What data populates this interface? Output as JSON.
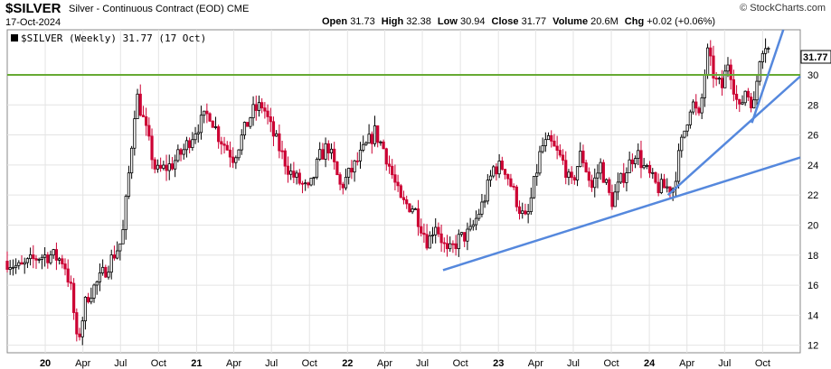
{
  "header": {
    "symbol": "$SILVER",
    "description": "Silver - Continuous Contract (EOD)",
    "exchange": "CME",
    "date": "17-Oct-2024",
    "brand": "© StockCharts.com",
    "open_label": "Open",
    "open": "31.73",
    "high_label": "High",
    "high": "32.38",
    "low_label": "Low",
    "low": "30.94",
    "close_label": "Close",
    "close": "31.77",
    "volume_label": "Volume",
    "volume": "20.6M",
    "chg_label": "Chg",
    "chg": "+0.02 (+0.06%)"
  },
  "legend": "$SILVER (Weekly) 31.77 (17 Oct)",
  "price_tag": "31.77",
  "colors": {
    "up": "#000000",
    "down": "#cc0033",
    "trend": "#5588dd",
    "resistance": "#66aa33",
    "grid": "#e4e4e4"
  },
  "chart_data": {
    "type": "candlestick",
    "interval": "weekly",
    "ylim": [
      11.5,
      33
    ],
    "yticks": [
      12,
      14,
      16,
      18,
      20,
      22,
      24,
      26,
      28,
      30
    ],
    "x_tick_labels": [
      "20",
      "Apr",
      "Jul",
      "Oct",
      "21",
      "Apr",
      "Jul",
      "Oct",
      "22",
      "Apr",
      "Jul",
      "Oct",
      "23",
      "Apr",
      "Jul",
      "Oct",
      "24",
      "Apr",
      "Jul",
      "Oct"
    ],
    "x_tick_dates": [
      "2020-01-01",
      "2020-04-01",
      "2020-07-01",
      "2020-10-01",
      "2021-01-01",
      "2021-04-01",
      "2021-07-01",
      "2021-10-01",
      "2022-01-01",
      "2022-04-01",
      "2022-07-01",
      "2022-10-01",
      "2023-01-01",
      "2023-04-01",
      "2023-07-01",
      "2023-10-01",
      "2024-01-01",
      "2024-04-01",
      "2024-07-01",
      "2024-10-01"
    ],
    "xlim": [
      "2019-10-01",
      "2024-12-31"
    ],
    "close_path": [
      [
        "2019-10-01",
        17.6
      ],
      [
        "2019-11-01",
        17.1
      ],
      [
        "2019-12-15",
        17.9
      ],
      [
        "2020-01-15",
        18.0
      ],
      [
        "2020-02-15",
        17.6
      ],
      [
        "2020-03-05",
        15.5
      ],
      [
        "2020-03-18",
        12.0
      ],
      [
        "2020-04-10",
        15.2
      ],
      [
        "2020-05-10",
        16.3
      ],
      [
        "2020-06-10",
        17.8
      ],
      [
        "2020-07-05",
        19.0
      ],
      [
        "2020-07-25",
        24.5
      ],
      [
        "2020-08-08",
        28.8
      ],
      [
        "2020-08-25",
        27.0
      ],
      [
        "2020-09-25",
        23.5
      ],
      [
        "2020-11-01",
        24.0
      ],
      [
        "2020-12-01",
        25.0
      ],
      [
        "2021-01-01",
        26.5
      ],
      [
        "2021-02-01",
        27.5
      ],
      [
        "2021-02-22",
        26.0
      ],
      [
        "2021-03-31",
        24.5
      ],
      [
        "2021-05-15",
        27.5
      ],
      [
        "2021-06-10",
        28.0
      ],
      [
        "2021-07-01",
        26.3
      ],
      [
        "2021-08-15",
        23.5
      ],
      [
        "2021-09-30",
        22.2
      ],
      [
        "2021-10-25",
        24.5
      ],
      [
        "2021-11-15",
        25.3
      ],
      [
        "2021-12-15",
        22.5
      ],
      [
        "2022-01-15",
        23.8
      ],
      [
        "2022-03-08",
        26.2
      ],
      [
        "2022-03-31",
        25.0
      ],
      [
        "2022-05-10",
        21.5
      ],
      [
        "2022-06-10",
        21.2
      ],
      [
        "2022-07-15",
        18.8
      ],
      [
        "2022-08-01",
        20.2
      ],
      [
        "2022-08-31",
        18.0
      ],
      [
        "2022-09-25",
        19.0
      ],
      [
        "2022-10-25",
        19.5
      ],
      [
        "2022-11-25",
        21.5
      ],
      [
        "2022-12-20",
        23.8
      ],
      [
        "2023-01-15",
        23.9
      ],
      [
        "2023-02-25",
        20.8
      ],
      [
        "2023-03-10",
        20.2
      ],
      [
        "2023-04-15",
        25.2
      ],
      [
        "2023-05-05",
        25.5
      ],
      [
        "2023-06-10",
        24.0
      ],
      [
        "2023-06-25",
        22.5
      ],
      [
        "2023-07-20",
        24.8
      ],
      [
        "2023-08-15",
        22.5
      ],
      [
        "2023-09-05",
        24.0
      ],
      [
        "2023-10-01",
        21.5
      ],
      [
        "2023-10-25",
        23.0
      ],
      [
        "2023-11-30",
        25.0
      ],
      [
        "2023-12-15",
        24.0
      ],
      [
        "2024-01-20",
        22.5
      ],
      [
        "2024-02-28",
        22.5
      ],
      [
        "2024-03-15",
        25.0
      ],
      [
        "2024-04-12",
        28.3
      ],
      [
        "2024-05-01",
        27.0
      ],
      [
        "2024-05-20",
        31.5
      ],
      [
        "2024-06-10",
        29.5
      ],
      [
        "2024-06-25",
        29.2
      ],
      [
        "2024-07-10",
        31.0
      ],
      [
        "2024-08-05",
        27.5
      ],
      [
        "2024-08-20",
        29.0
      ],
      [
        "2024-09-10",
        28.0
      ],
      [
        "2024-09-25",
        31.5
      ],
      [
        "2024-10-05",
        32.2
      ],
      [
        "2024-10-17",
        31.77
      ]
    ],
    "resistance_level": 30,
    "trendlines": [
      {
        "from": [
          "2022-08-20",
          17.0
        ],
        "to": [
          "2024-12-31",
          24.5
        ]
      },
      {
        "from": [
          "2024-02-15",
          22.0
        ],
        "to": [
          "2024-12-31",
          29.9
        ]
      },
      {
        "from": [
          "2024-09-05",
          26.8
        ],
        "to": [
          "2024-11-20",
          33.0
        ]
      }
    ]
  }
}
